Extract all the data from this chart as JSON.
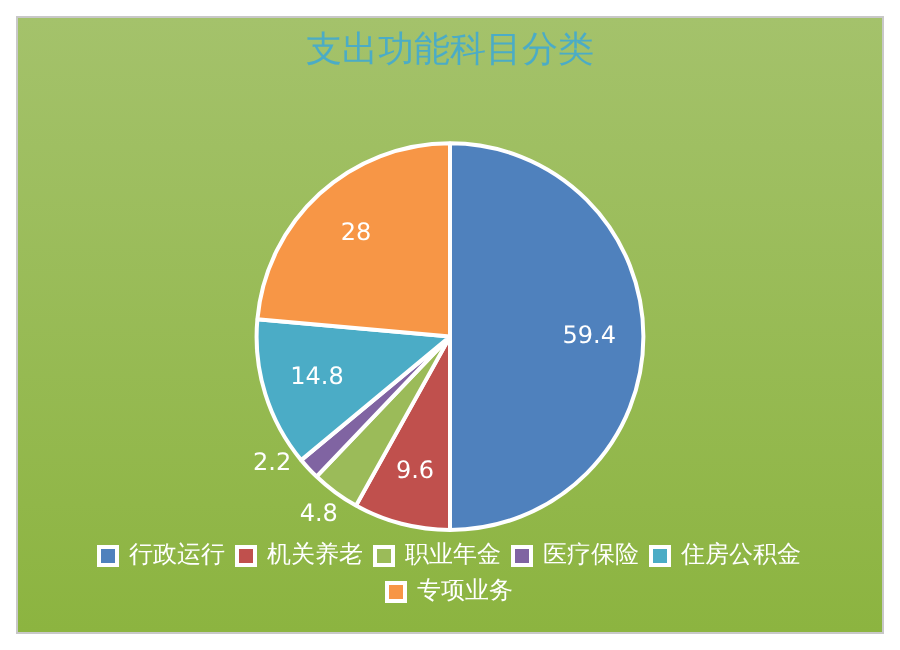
{
  "chart_data": {
    "type": "pie",
    "title": "支出功能科目分类",
    "categories": [
      "行政运行",
      "机关养老",
      "职业年金",
      "医疗保险",
      "住房公积金",
      "专项业务"
    ],
    "values": [
      59.4,
      9.6,
      4.8,
      2.2,
      14.8,
      28
    ],
    "colors": [
      "#4f81bd",
      "#c0504d",
      "#9bbb59",
      "#8064a2",
      "#4bacc6",
      "#f79646"
    ],
    "data_labels": true,
    "legend": "bottom"
  }
}
